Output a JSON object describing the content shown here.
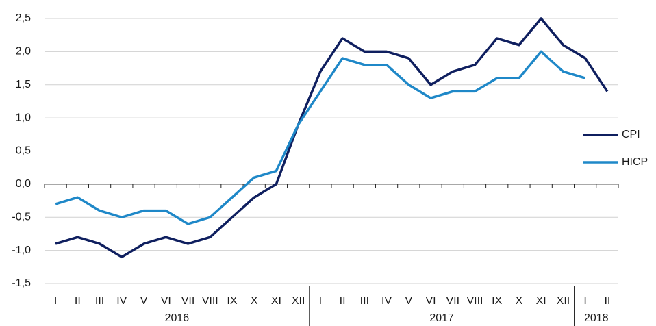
{
  "chart_data": {
    "type": "line",
    "categories": [
      "I",
      "II",
      "III",
      "IV",
      "V",
      "VI",
      "VII",
      "VIII",
      "IX",
      "X",
      "XI",
      "XII",
      "I",
      "II",
      "III",
      "IV",
      "V",
      "VI",
      "VII",
      "VIII",
      "IX",
      "X",
      "XI",
      "XII",
      "I",
      "II"
    ],
    "x_groups": [
      {
        "label": "2016",
        "size": 12
      },
      {
        "label": "2017",
        "size": 12
      },
      {
        "label": "2018",
        "size": 2
      }
    ],
    "series": [
      {
        "name": "CPI",
        "color": "#0f1f5f",
        "values": [
          -0.9,
          -0.8,
          -0.9,
          -1.1,
          -0.9,
          -0.8,
          -0.9,
          -0.8,
          -0.5,
          -0.2,
          0.0,
          0.9,
          1.7,
          2.2,
          2.0,
          2.0,
          1.9,
          1.5,
          1.7,
          1.8,
          2.2,
          2.1,
          2.5,
          2.1,
          1.9,
          1.4
        ]
      },
      {
        "name": "HICP",
        "color": "#1f88c8",
        "values": [
          -0.3,
          -0.2,
          -0.4,
          -0.5,
          -0.4,
          -0.4,
          -0.6,
          -0.5,
          -0.2,
          0.1,
          0.2,
          0.9,
          1.4,
          1.9,
          1.8,
          1.8,
          1.5,
          1.3,
          1.4,
          1.4,
          1.6,
          1.6,
          2.0,
          1.7,
          1.6,
          null
        ]
      }
    ],
    "ylim": [
      -1.5,
      2.5
    ],
    "yticks": [
      {
        "value": -1.5,
        "label": "-1,5"
      },
      {
        "value": -1,
        "label": "-1,0"
      },
      {
        "value": -0.5,
        "label": "-0,5"
      },
      {
        "value": 0,
        "label": "0,0"
      },
      {
        "value": 0.5,
        "label": "0,5"
      },
      {
        "value": 1,
        "label": "1,0"
      },
      {
        "value": 1.5,
        "label": "1,5"
      },
      {
        "value": 2,
        "label": "2,0"
      },
      {
        "value": 2.5,
        "label": "2,5"
      }
    ],
    "grid": true,
    "legend": "right"
  }
}
